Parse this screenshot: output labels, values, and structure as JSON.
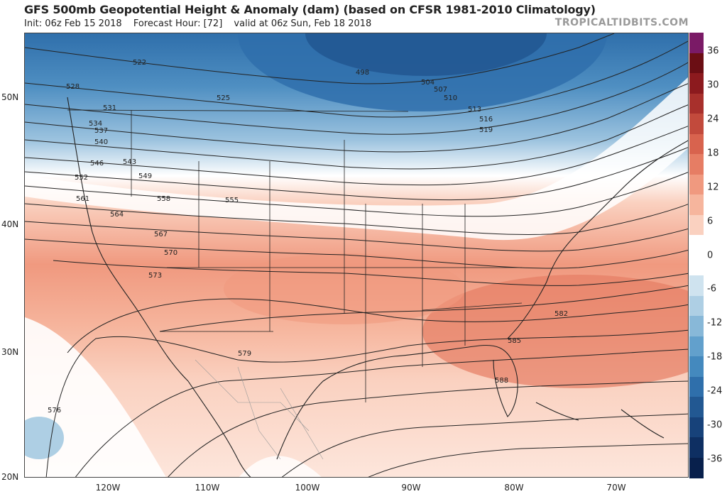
{
  "header": {
    "title": "GFS 500mb Geopotential Height & Anomaly (dam) (based on CFSR 1981-2010 Climatology)",
    "init": "Init: 06z Feb 15 2018",
    "forecast_hour": "Forecast Hour: [72]",
    "valid": "valid at 06z Sun, Feb 18 2018",
    "brand": "TROPICALTIDBITS.COM"
  },
  "axes": {
    "lat_labels": [
      "50N",
      "40N",
      "30N",
      "20N"
    ],
    "lon_labels": [
      "120W",
      "110W",
      "100W",
      "90W",
      "80W",
      "70W"
    ]
  },
  "colorbar": {
    "ticks": [
      "36",
      "30",
      "24",
      "18",
      "12",
      "6",
      "0",
      "-6",
      "-12",
      "-18",
      "-24",
      "-30",
      "-36"
    ],
    "colors": [
      "#7a1a66",
      "#6b0e14",
      "#8c1a1e",
      "#a8302c",
      "#c24a3c",
      "#d8634e",
      "#e67d64",
      "#f0997f",
      "#f6b59d",
      "#fad1c0",
      "#ffffff",
      "#ffffff",
      "#cfe3ef",
      "#aecfe4",
      "#88b8d8",
      "#62a0cc",
      "#4489be",
      "#2f6fab",
      "#225892",
      "#17427a",
      "#0e2f62",
      "#08204c"
    ]
  },
  "contours": {
    "labels": [
      "522",
      "528",
      "531",
      "534",
      "537",
      "540",
      "546",
      "552",
      "561",
      "564",
      "567",
      "570",
      "573",
      "525",
      "543",
      "549",
      "558",
      "555",
      "498",
      "504",
      "507",
      "510",
      "513",
      "516",
      "519",
      "576",
      "579",
      "582",
      "585",
      "588"
    ]
  }
}
